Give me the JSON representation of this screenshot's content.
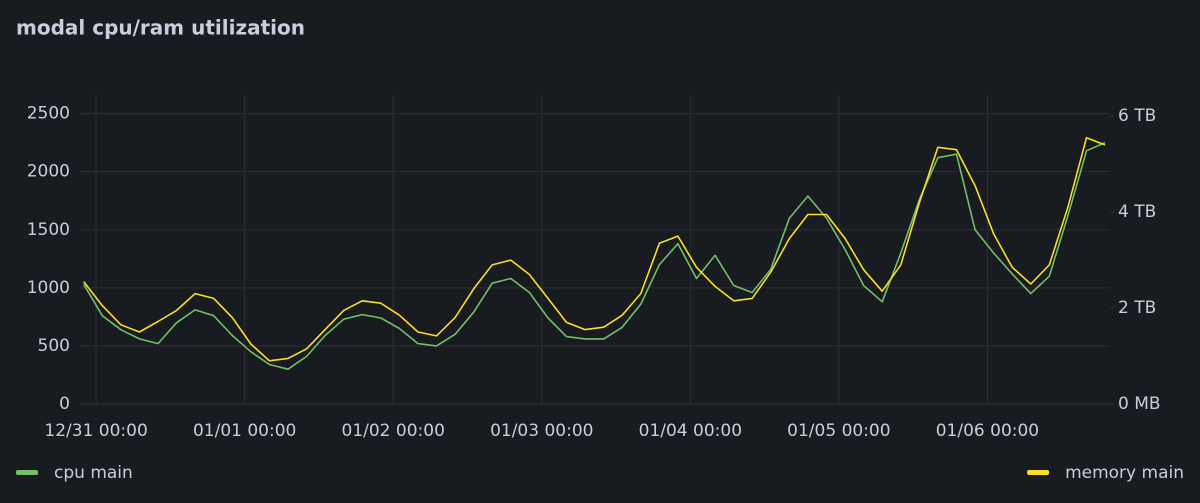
{
  "chart_data": {
    "type": "line",
    "title": "modal cpu/ram utilization",
    "x": [
      -2,
      1,
      4,
      7,
      10,
      13,
      16,
      19,
      22,
      25,
      28,
      31,
      34,
      37,
      40,
      43,
      46,
      49,
      52,
      55,
      58,
      61,
      64,
      67,
      70,
      73,
      76,
      79,
      82,
      85,
      88,
      91,
      94,
      97,
      100,
      103,
      106,
      109,
      112,
      115,
      118,
      121,
      124,
      127,
      130,
      133,
      136,
      139,
      142,
      145,
      148,
      151,
      154,
      157,
      160,
      163
    ],
    "xlim": [
      -2.6,
      163.8
    ],
    "xticks": [
      {
        "value": 0,
        "label": "12/31 00:00"
      },
      {
        "value": 24,
        "label": "01/01 00:00"
      },
      {
        "value": 48,
        "label": "01/02 00:00"
      },
      {
        "value": 72,
        "label": "01/03 00:00"
      },
      {
        "value": 96,
        "label": "01/04 00:00"
      },
      {
        "value": 120,
        "label": "01/05 00:00"
      },
      {
        "value": 144,
        "label": "01/06 00:00"
      }
    ],
    "ylim": [
      0,
      2660
    ],
    "yticks": [
      0,
      500,
      1000,
      1500,
      2000,
      2500
    ],
    "y2lim": [
      0,
      6.44
    ],
    "y2ticks": [
      {
        "value": 0,
        "label": "0 MB"
      },
      {
        "value": 2,
        "label": "2 TB"
      },
      {
        "value": 4,
        "label": "4 TB"
      },
      {
        "value": 6,
        "label": "6 TB"
      }
    ],
    "grid": true,
    "legend": "bottom",
    "series": [
      {
        "name": "cpu main",
        "color": "#73bf69",
        "values": [
          1030,
          760,
          640,
          560,
          520,
          700,
          810,
          760,
          590,
          450,
          340,
          300,
          410,
          590,
          730,
          770,
          740,
          650,
          520,
          500,
          600,
          790,
          1040,
          1080,
          960,
          740,
          580,
          560,
          560,
          660,
          860,
          1200,
          1380,
          1080,
          1280,
          1020,
          960,
          1160,
          1600,
          1790,
          1600,
          1330,
          1020,
          880,
          1300,
          1760,
          2120,
          2150,
          1500,
          1300,
          1120,
          950,
          1100,
          1620,
          2180,
          2250
        ]
      },
      {
        "name": "memory main",
        "color": "#fade2a",
        "axis": "y2",
        "values": [
          2.55,
          2.05,
          1.65,
          1.5,
          1.72,
          1.95,
          2.3,
          2.2,
          1.8,
          1.25,
          0.9,
          0.95,
          1.15,
          1.55,
          1.95,
          2.15,
          2.1,
          1.85,
          1.5,
          1.42,
          1.8,
          2.4,
          2.9,
          3.0,
          2.7,
          2.2,
          1.7,
          1.55,
          1.6,
          1.85,
          2.3,
          3.35,
          3.5,
          2.85,
          2.45,
          2.15,
          2.2,
          2.75,
          3.45,
          3.95,
          3.95,
          3.45,
          2.8,
          2.35,
          2.9,
          4.2,
          5.35,
          5.3,
          4.55,
          3.55,
          2.85,
          2.5,
          2.9,
          4.1,
          5.55,
          5.4
        ]
      }
    ]
  }
}
